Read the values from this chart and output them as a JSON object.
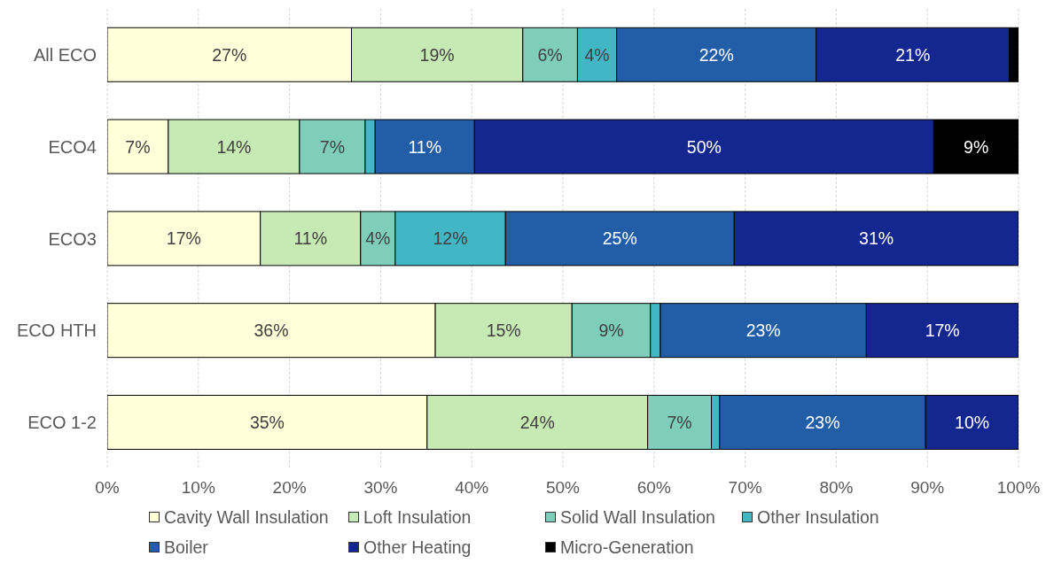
{
  "chart_data": {
    "type": "bar",
    "orientation": "horizontal",
    "stacked": true,
    "categories": [
      "All ECO",
      "ECO4",
      "ECO3",
      "ECO HTH",
      "ECO 1-2"
    ],
    "series": [
      {
        "name": "Cavity Wall Insulation",
        "color": "#ffffd9",
        "values": [
          26.8,
          6.7,
          16.8,
          36.0,
          35.1
        ],
        "value_labels": [
          "27%",
          "7%",
          "17%",
          "36%",
          "35%"
        ]
      },
      {
        "name": "Loft Insulation",
        "color": "#c7e9b4",
        "values": [
          18.8,
          14.4,
          11.0,
          15.0,
          24.2
        ],
        "value_labels": [
          "19%",
          "14%",
          "11%",
          "15%",
          "24%"
        ]
      },
      {
        "name": "Solid Wall Insulation",
        "color": "#7fcdbb",
        "values": [
          6.0,
          7.2,
          3.8,
          8.6,
          7.0
        ],
        "value_labels": [
          "6%",
          "7%",
          "4%",
          "9%",
          "7%"
        ]
      },
      {
        "name": "Other Insulation",
        "color": "#41b6c4",
        "values": [
          4.3,
          1.1,
          12.1,
          1.1,
          0.9
        ],
        "value_labels": [
          "4%",
          null,
          "12%",
          null,
          null
        ]
      },
      {
        "name": "Boiler",
        "color": "#225ea8",
        "values": [
          21.9,
          10.9,
          25.1,
          22.6,
          22.6
        ],
        "value_labels": [
          "22%",
          "11%",
          "25%",
          "23%",
          "23%"
        ]
      },
      {
        "name": "Other Heating",
        "color": "#142790",
        "values": [
          21.2,
          50.4,
          31.2,
          16.7,
          10.2
        ],
        "value_labels": [
          "21%",
          "50%",
          "31%",
          "17%",
          "10%"
        ]
      },
      {
        "name": "Micro-Generation",
        "color": "#000000",
        "values": [
          1.0,
          9.3,
          0,
          0,
          0
        ],
        "value_labels": [
          null,
          "9%",
          null,
          null,
          null
        ]
      }
    ],
    "xlim": [
      0,
      100
    ],
    "xticks": [
      {
        "value": 0,
        "label": "0%"
      },
      {
        "value": 10,
        "label": "10%"
      },
      {
        "value": 20,
        "label": "20%"
      },
      {
        "value": 30,
        "label": "30%"
      },
      {
        "value": 40,
        "label": "40%"
      },
      {
        "value": 50,
        "label": "50%"
      },
      {
        "value": 60,
        "label": "60%"
      },
      {
        "value": 70,
        "label": "70%"
      },
      {
        "value": 80,
        "label": "80%"
      },
      {
        "value": 90,
        "label": "90%"
      },
      {
        "value": 100,
        "label": "100%"
      }
    ],
    "grid": "x",
    "legend": "bottom"
  }
}
